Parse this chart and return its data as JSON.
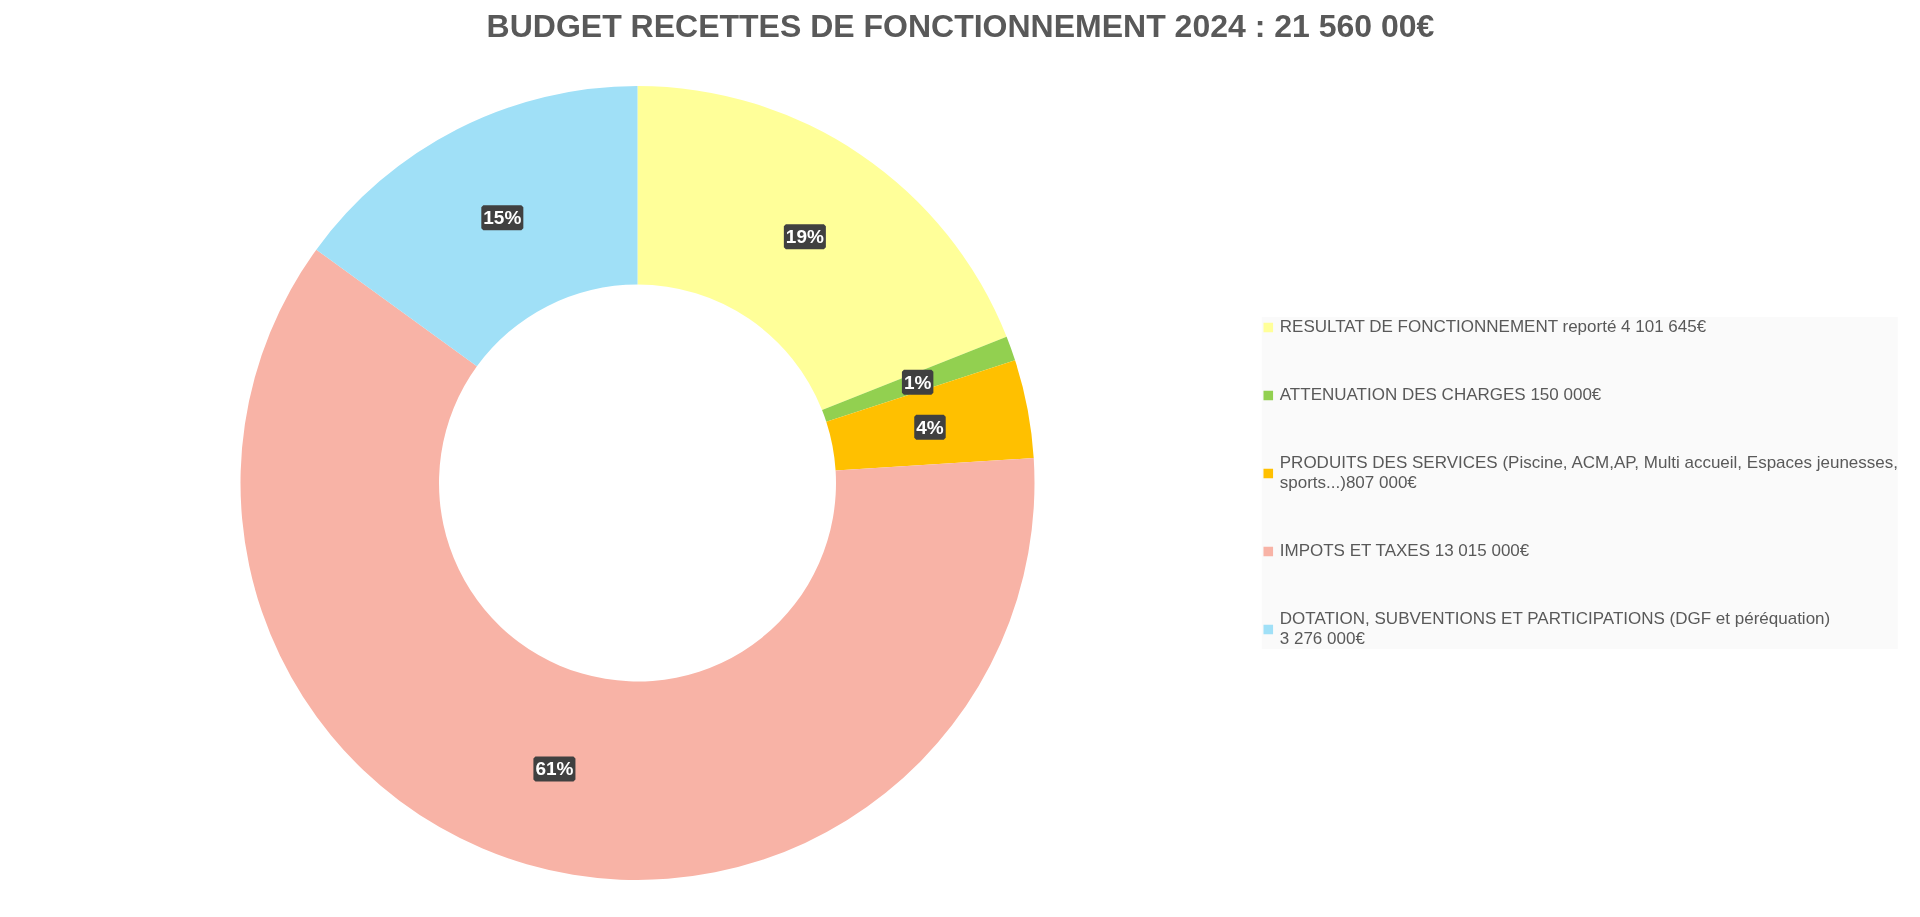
{
  "chart_data": {
    "type": "donut",
    "title": "BUDGET RECETTES DE FONCTIONNEMENT 2024 : 21 560 00€",
    "categories": [
      "RESULTAT DE FONCTIONNEMENT reporté 4 101 645€",
      "ATTENUATION DES CHARGES 150 000€",
      "PRODUITS DES SERVICES (Piscine, ACM,AP, Multi accueil, Espaces jeunesses, sports...)807 000€",
      "IMPOTS ET TAXES 13 015 000€",
      "DOTATION, SUBVENTIONS ET PARTICIPATIONS (DGF et péréquation) 3 276 000€"
    ],
    "values": [
      19,
      1,
      4,
      61,
      15
    ],
    "value_labels": [
      "19%",
      "1%",
      "4%",
      "61%",
      "15%"
    ],
    "colors": [
      "#ffff99",
      "#92d050",
      "#ffc000",
      "#f8b3a6",
      "#a0e0f7"
    ],
    "legend": "right"
  }
}
